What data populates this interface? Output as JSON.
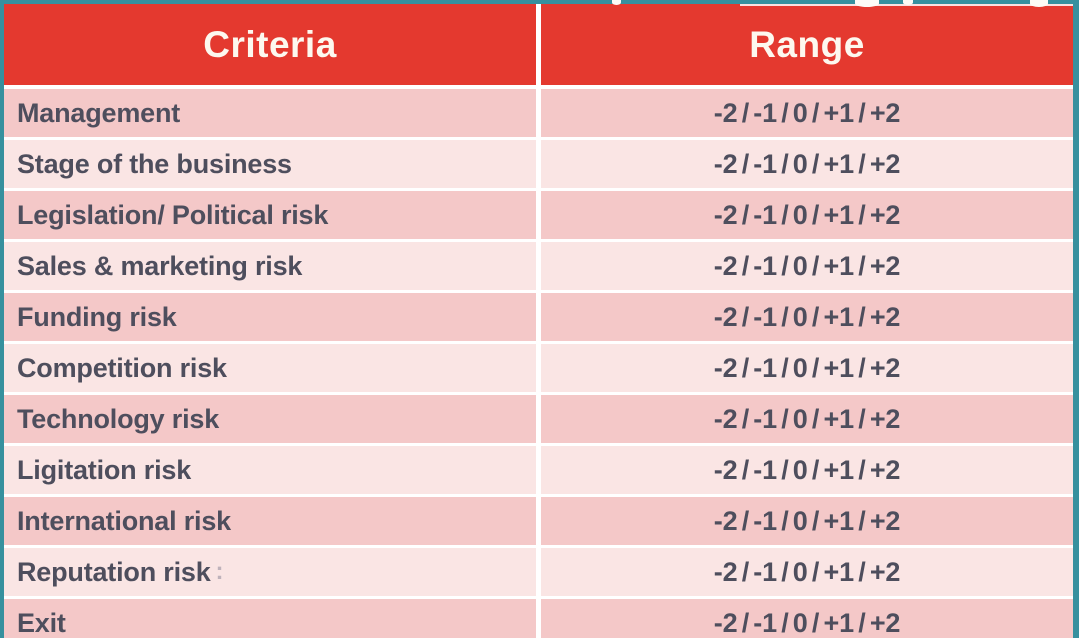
{
  "slide": {
    "table": {
      "header": {
        "criteria": "Criteria",
        "range": "Range"
      },
      "rows": [
        {
          "criteria": "Management",
          "range": "-2 / -1 / 0 / +1 / +2"
        },
        {
          "criteria": "Stage of the business",
          "range": "-2 / -1 / 0 / +1 / +2"
        },
        {
          "criteria": "Legislation/ Political risk",
          "range": "-2 / -1 / 0 / +1 / +2"
        },
        {
          "criteria": "Sales & marketing risk",
          "range": "-2 / -1 / 0 / +1 / +2"
        },
        {
          "criteria": "Funding risk",
          "range": "-2 / -1 / 0 / +1 / +2"
        },
        {
          "criteria": "Competition risk",
          "range": "-2 / -1 / 0 / +1 / +2"
        },
        {
          "criteria": "Technology risk",
          "range": "-2 / -1 / 0 / +1 / +2"
        },
        {
          "criteria": "Ligitation risk",
          "range": "-2 / -1 / 0 / +1 / +2"
        },
        {
          "criteria": "International risk",
          "range": "-2 / -1 / 0 / +1 / +2"
        },
        {
          "criteria": "Reputation risk",
          "range": "-2 / -1 / 0 / +1 / +2",
          "artifact": ":"
        },
        {
          "criteria": "Exit",
          "range": "-2 / -1 / 0 / +1 / +2"
        }
      ]
    },
    "colors": {
      "header_bg": "#e4392f",
      "header_text": "#fdf8ef",
      "row_dark": "#f4c8c8",
      "row_light": "#fae5e4",
      "frame_teal": "#37909e",
      "body_text": "#4e4e5d",
      "divider_white": "#ffffff"
    }
  }
}
